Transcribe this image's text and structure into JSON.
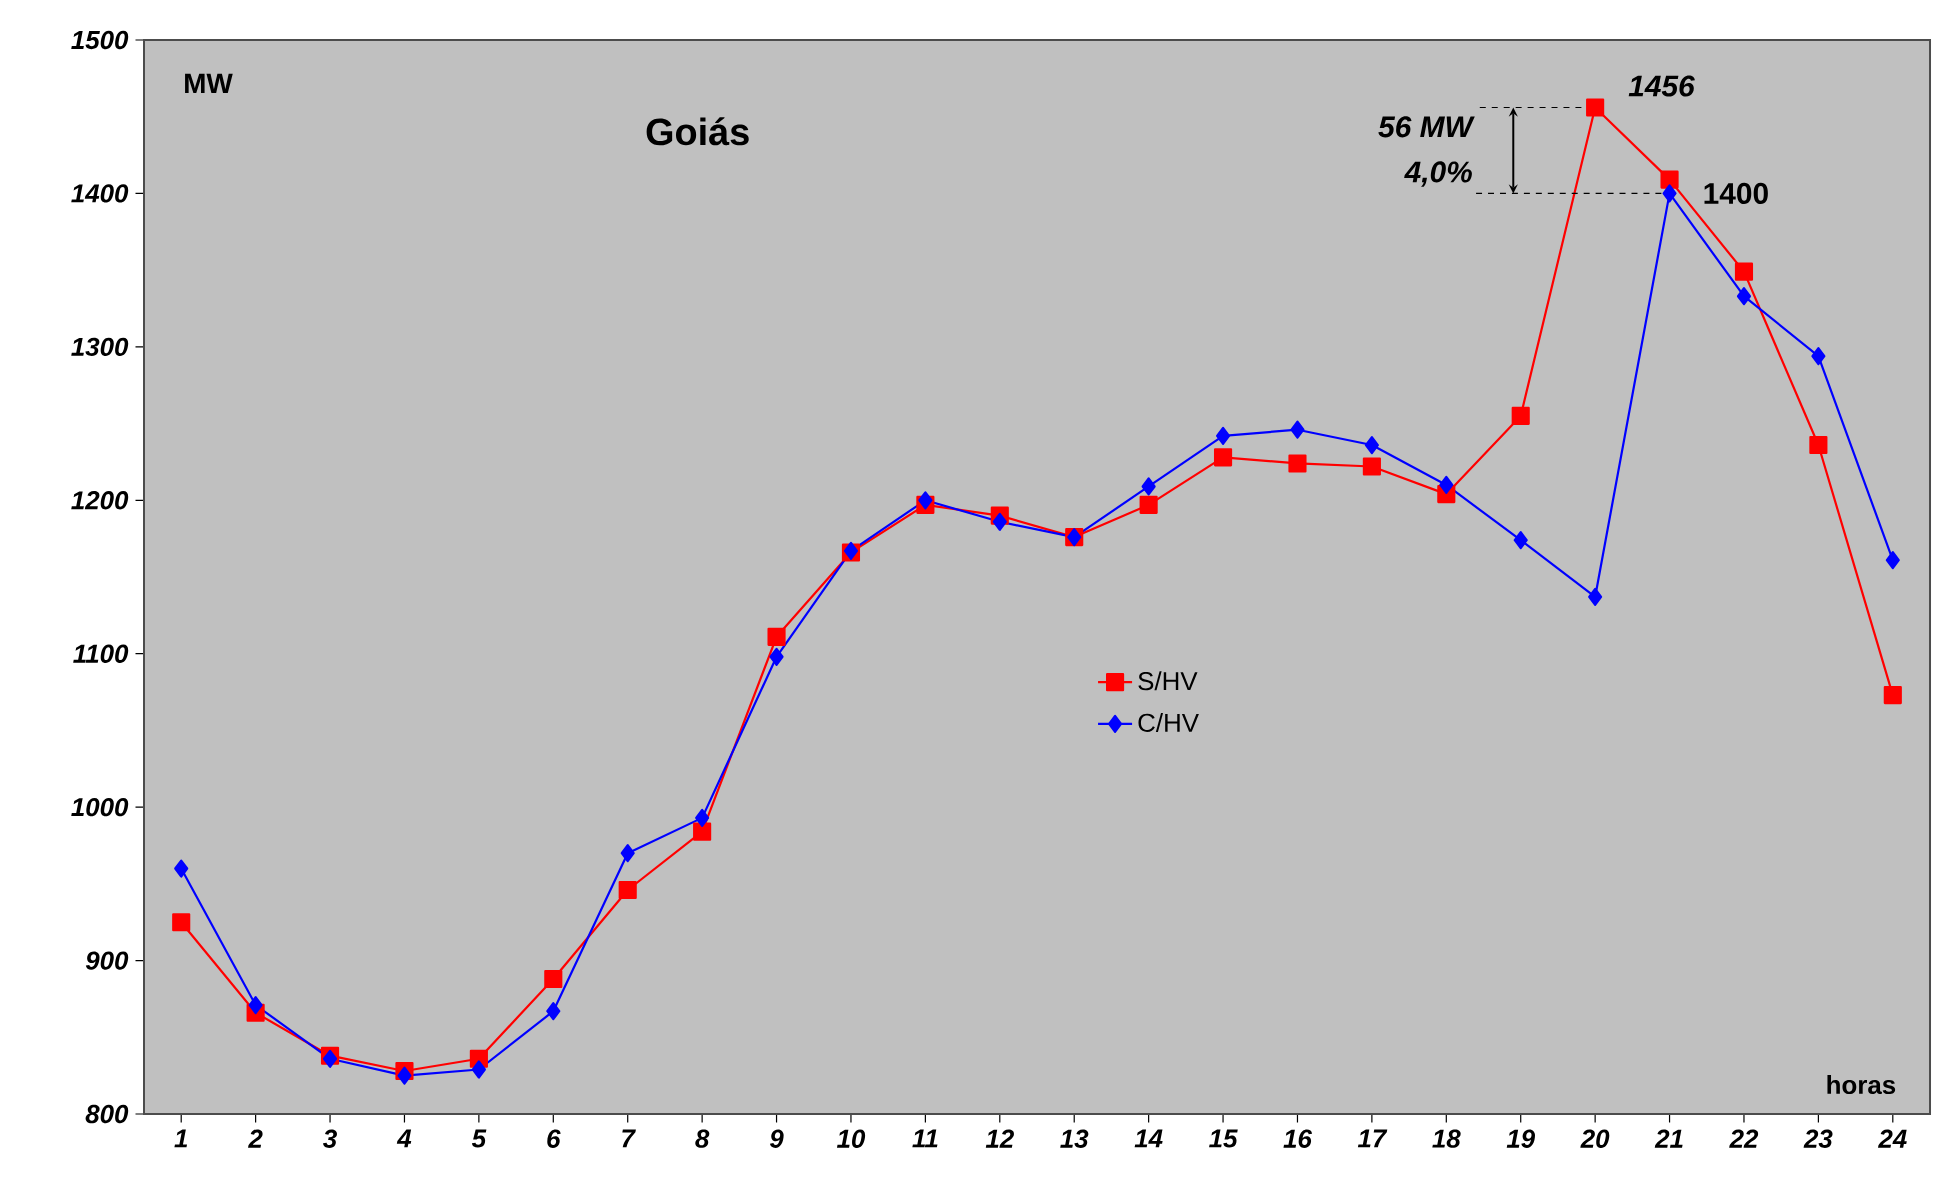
{
  "chart_data": {
    "type": "line",
    "title": "Goiás",
    "xlabel": "horas",
    "ylabel": "MW",
    "categories": [
      "1",
      "2",
      "3",
      "4",
      "5",
      "6",
      "7",
      "8",
      "9",
      "10",
      "11",
      "12",
      "13",
      "14",
      "15",
      "16",
      "17",
      "18",
      "19",
      "20",
      "21",
      "22",
      "23",
      "24"
    ],
    "series": [
      {
        "name": "S/HV",
        "color": "#ff0000",
        "marker": "square",
        "values": [
          925,
          866,
          838,
          828,
          836,
          888,
          946,
          984,
          1111,
          1166,
          1197,
          1190,
          1176,
          1197,
          1228,
          1224,
          1222,
          1204,
          1255,
          1456,
          1409,
          1349,
          1236,
          1073
        ]
      },
      {
        "name": "C/HV",
        "color": "#0000ff",
        "marker": "diamond",
        "values": [
          960,
          871,
          836,
          825,
          829,
          867,
          970,
          993,
          1098,
          1167,
          1200,
          1186,
          1176,
          1209,
          1242,
          1246,
          1236,
          1210,
          1174,
          1137,
          1400,
          1333,
          1294,
          1161
        ]
      }
    ],
    "ylim": [
      800,
      1500
    ],
    "yticks": [
      800,
      900,
      1000,
      1100,
      1200,
      1300,
      1400,
      1500
    ],
    "legend": "center",
    "line_style": "solid",
    "annotations": [
      {
        "text": "1456",
        "x": "20",
        "y": 1456
      },
      {
        "text": "1400",
        "x": "21",
        "y": 1400
      },
      {
        "text": "56 MW",
        "x": "20",
        "y": 1456
      },
      {
        "text": "4,0%",
        "x": "21",
        "y": 1400
      }
    ]
  }
}
